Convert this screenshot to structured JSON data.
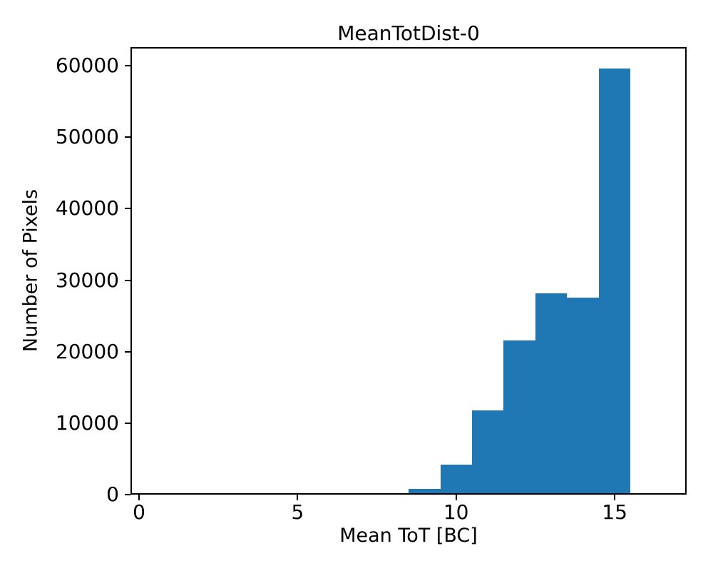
{
  "figure": {
    "background_color": "#ffffff",
    "text_color": "#000000"
  },
  "chart_data": {
    "type": "bar",
    "subtype": "histogram",
    "title": "MeanTotDist-0",
    "xlabel": "Mean ToT [BC]",
    "ylabel": "Number of Pixels",
    "bar_color": "#1f77b4",
    "bin_edges": [
      7.5,
      8.5,
      9.5,
      10.5,
      11.5,
      12.5,
      13.5,
      14.5,
      15.5
    ],
    "counts": [
      200,
      800,
      4200,
      11800,
      21600,
      28200,
      27600,
      59600
    ],
    "bin_centers": [
      8,
      9,
      10,
      11,
      12,
      13,
      14,
      15
    ],
    "xlim": [
      -0.27,
      17.27
    ],
    "ylim": [
      0,
      62600
    ],
    "x_ticks": [
      0,
      5,
      10,
      15
    ],
    "x_tick_labels": [
      "0",
      "5",
      "10",
      "15"
    ],
    "y_ticks": [
      0,
      10000,
      20000,
      30000,
      40000,
      50000,
      60000
    ],
    "y_tick_labels": [
      "0",
      "10000",
      "20000",
      "30000",
      "40000",
      "50000",
      "60000"
    ],
    "grid": false,
    "legend": null
  }
}
